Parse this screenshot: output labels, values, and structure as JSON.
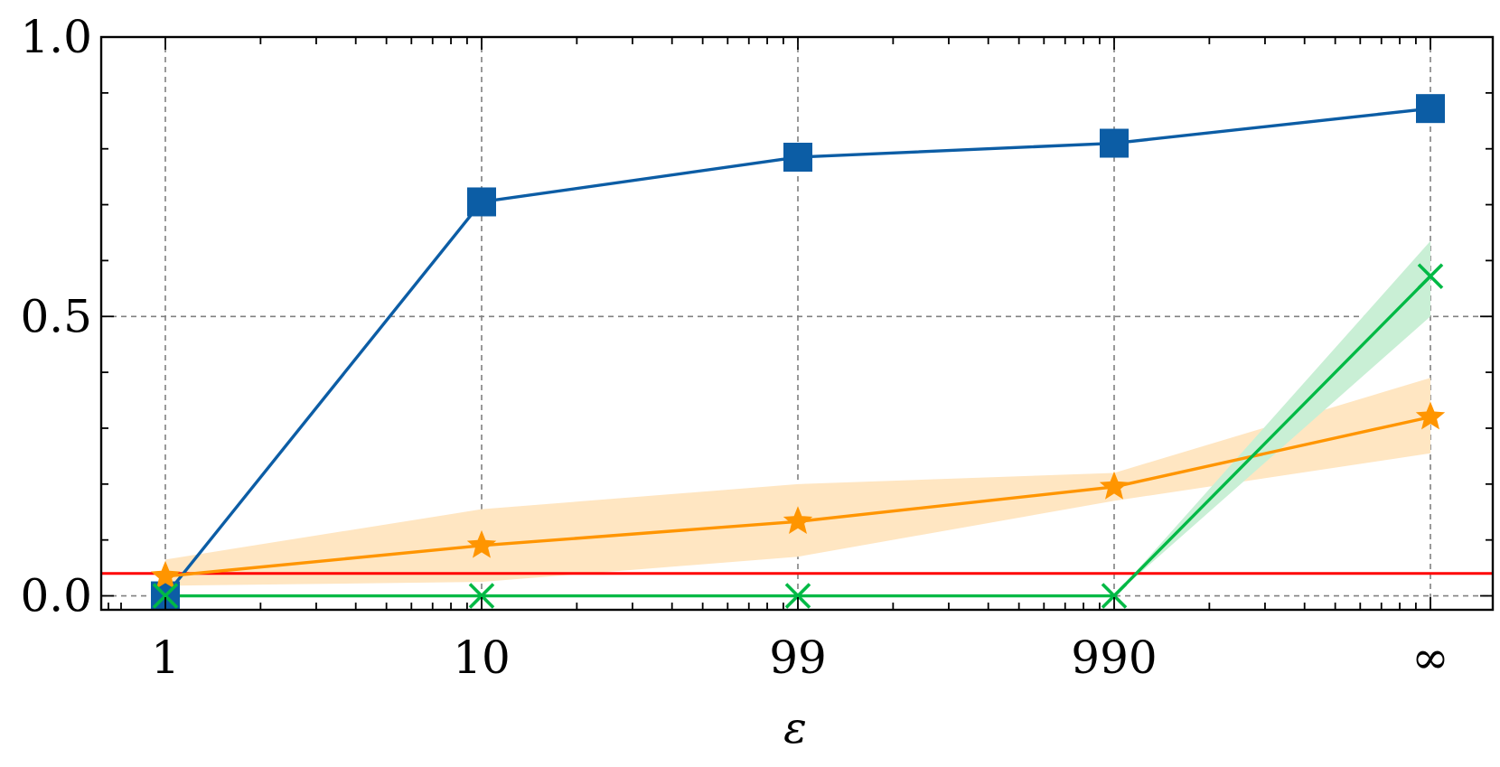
{
  "chart_data": {
    "type": "line",
    "title": "",
    "xlabel": "ε",
    "ylabel": "",
    "categories": [
      "1",
      "10",
      "99",
      "990",
      "∞"
    ],
    "ylim": [
      -0.025,
      1.0
    ],
    "yticks": [
      "0.0",
      "0.5",
      "1.0"
    ],
    "grid": true,
    "legend": "none",
    "reference_line": {
      "y": 0.04,
      "color": "#ff0000"
    },
    "series": [
      {
        "color": "#0c5da5",
        "marker": "square",
        "values": [
          0.0,
          0.705,
          0.785,
          0.81,
          0.872
        ]
      },
      {
        "color": "#ff9500",
        "marker": "star",
        "values": [
          0.035,
          0.09,
          0.133,
          0.195,
          0.32
        ],
        "band_lower": [
          0.018,
          0.025,
          0.07,
          0.17,
          0.255
        ],
        "band_upper": [
          0.065,
          0.155,
          0.2,
          0.22,
          0.39
        ],
        "band_color": "#ffe6c2"
      },
      {
        "color": "#00b945",
        "marker": "x",
        "values": [
          0.0,
          0.0,
          0.0,
          0.0,
          0.572
        ],
        "band_lower": [
          0.0,
          0.0,
          0.0,
          0.0,
          0.5
        ],
        "band_upper": [
          0.0,
          0.0,
          0.0,
          0.0,
          0.635
        ],
        "band_color": "#c9efd5"
      }
    ]
  }
}
